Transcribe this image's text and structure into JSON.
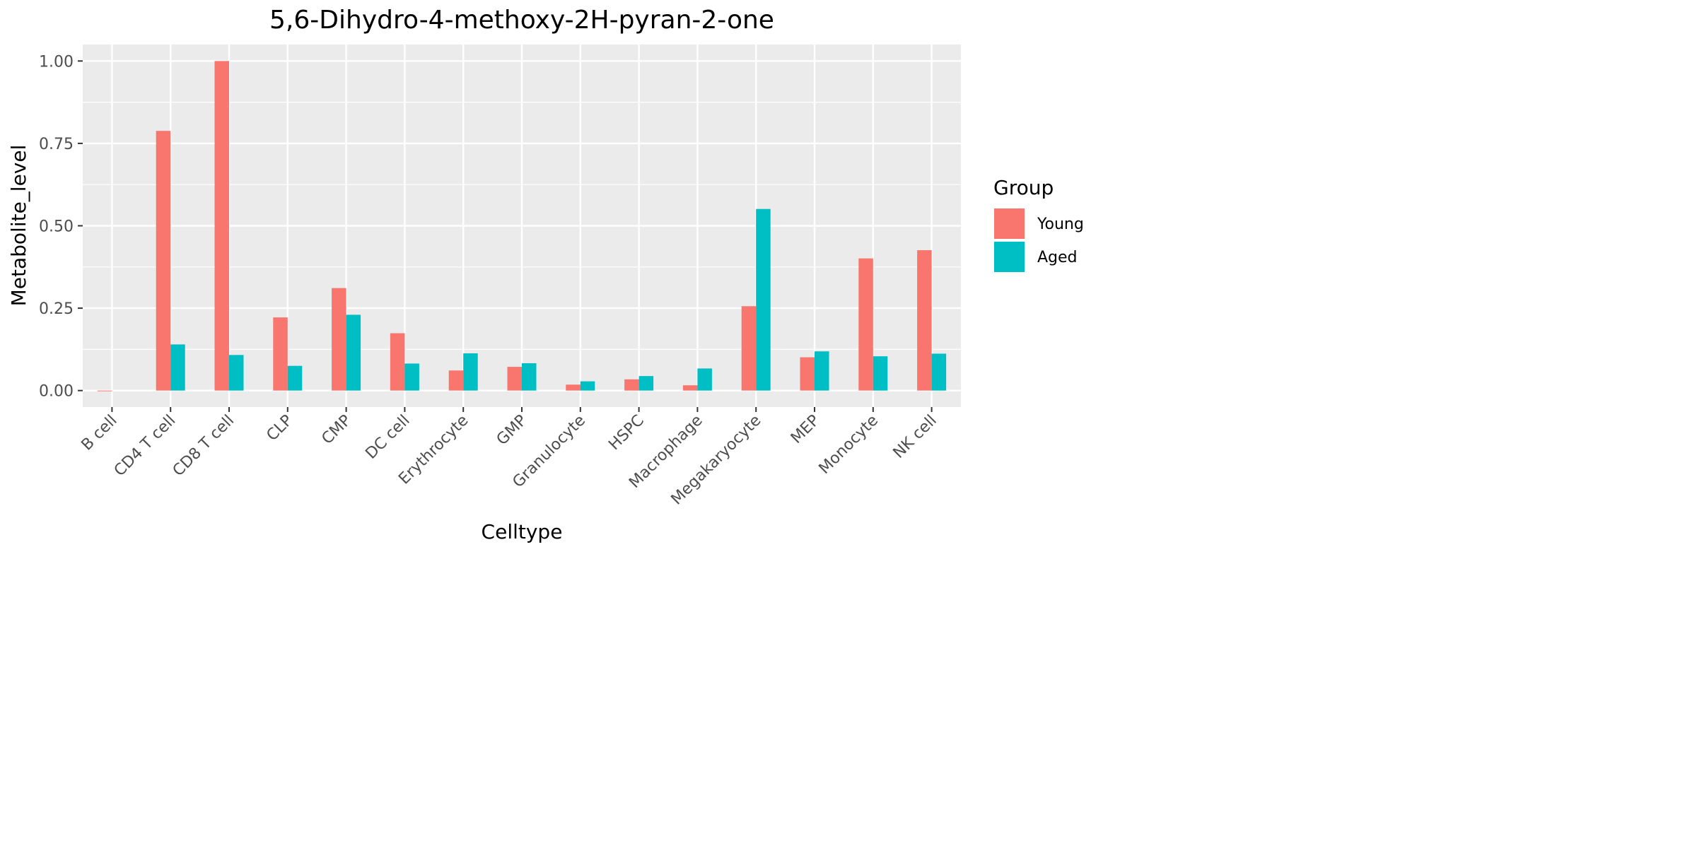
{
  "chart_data": {
    "type": "bar",
    "title": "5,6-Dihydro-4-methoxy-2H-pyran-2-one",
    "xlabel": "Celltype",
    "ylabel": "Metabolite_level",
    "ylim": [
      -0.05,
      1.05
    ],
    "yticks": [
      0.0,
      0.25,
      0.5,
      0.75,
      1.0
    ],
    "ytick_labels": [
      "0.00",
      "0.25",
      "0.50",
      "0.75",
      "1.00"
    ],
    "grid": true,
    "legend_position": "right",
    "categories": [
      "B cell",
      "CD4 T cell",
      "CD8 T cell",
      "CLP",
      "CMP",
      "DC cell",
      "Erythrocyte",
      "GMP",
      "Granulocyte",
      "HSPC",
      "Macrophage",
      "Megakaryocyte",
      "MEP",
      "Monocyte",
      "NK cell"
    ],
    "series": [
      {
        "name": "Young",
        "color": "#F8766D",
        "values": [
          -0.002,
          0.788,
          1.0,
          0.222,
          0.311,
          0.174,
          0.061,
          0.072,
          0.018,
          0.034,
          0.016,
          0.256,
          0.101,
          0.401,
          0.426
        ]
      },
      {
        "name": "Aged",
        "color": "#00BFC4",
        "values": [
          null,
          0.14,
          0.108,
          0.075,
          0.23,
          0.082,
          0.113,
          0.083,
          0.028,
          0.044,
          0.067,
          0.551,
          0.119,
          0.104,
          0.112
        ]
      }
    ],
    "legend": {
      "title": "Group"
    }
  }
}
